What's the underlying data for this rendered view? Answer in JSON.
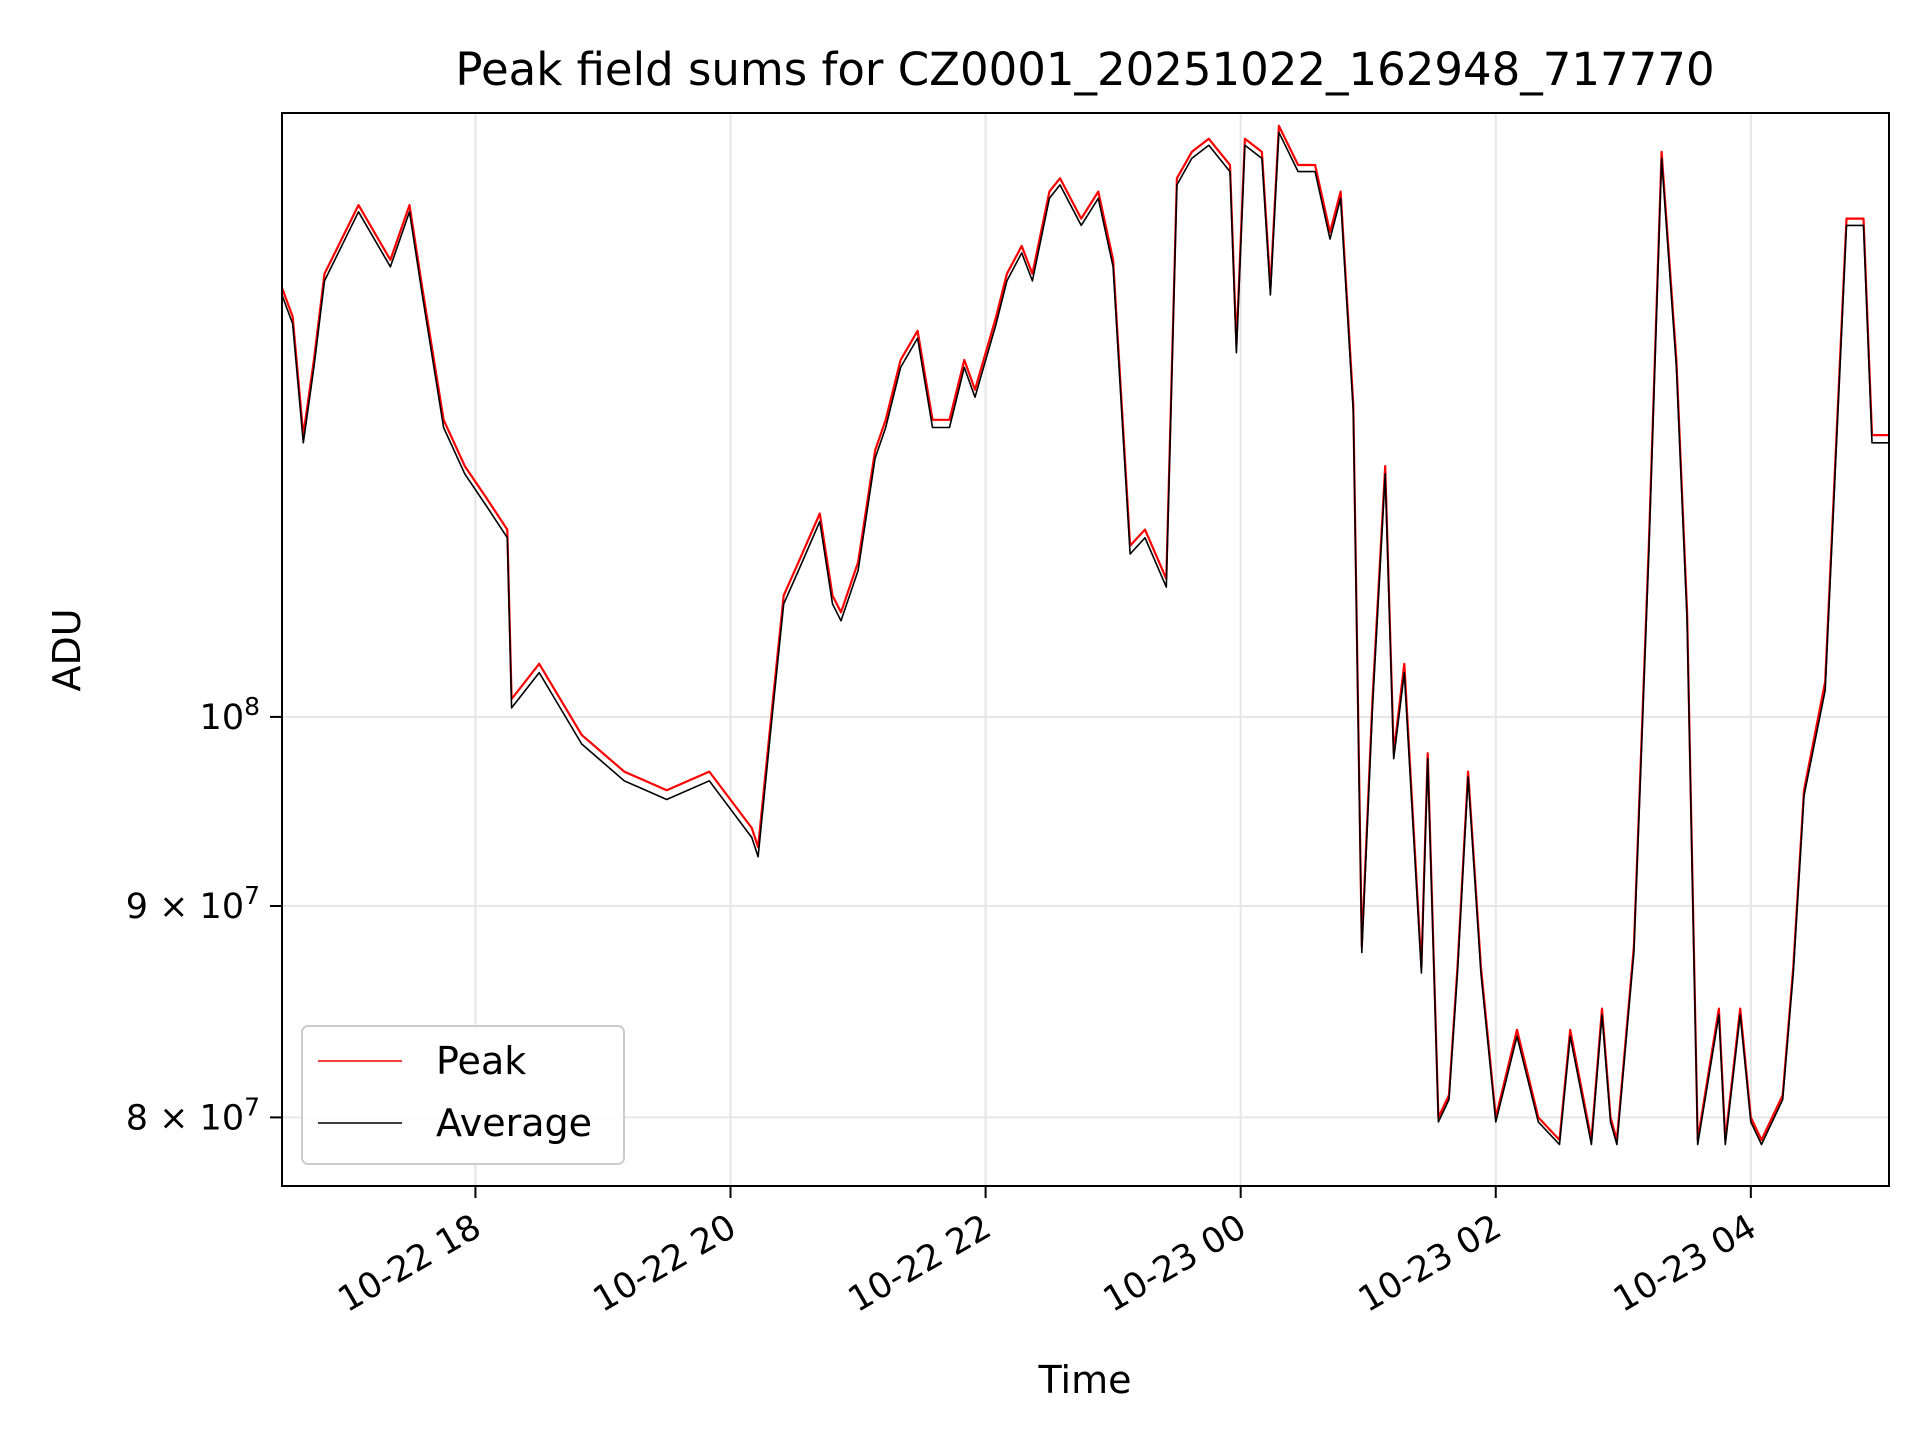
{
  "chart_data": {
    "type": "line",
    "title": "Peak field sums for CZ0001_20251022_162948_717770",
    "xlabel": "Time",
    "ylabel": "ADU",
    "y_scale": "log",
    "ylim": [
      77000000,
      140000000
    ],
    "xlim": [
      "2025-10-22 16:29",
      "2025-10-23 05:05"
    ],
    "grid": true,
    "legend_position": "lower-left",
    "x_ticks": [
      {
        "value": "2025-10-22 18:00",
        "label": "10-22 18"
      },
      {
        "value": "2025-10-22 20:00",
        "label": "10-22 20"
      },
      {
        "value": "2025-10-22 22:00",
        "label": "10-22 22"
      },
      {
        "value": "2025-10-23 00:00",
        "label": "10-23 00"
      },
      {
        "value": "2025-10-23 02:00",
        "label": "10-23 02"
      },
      {
        "value": "2025-10-23 04:00",
        "label": "10-23 04"
      }
    ],
    "y_ticks": [
      {
        "value": 100000000,
        "base": "10",
        "exp": "8"
      },
      {
        "value": 90000000,
        "mant": "9",
        "base": "10",
        "exp": "7"
      },
      {
        "value": 80000000,
        "mant": "8",
        "base": "10",
        "exp": "7"
      }
    ],
    "times": [
      "2025-10-22 16:29",
      "2025-10-22 16:34",
      "2025-10-22 16:39",
      "2025-10-22 16:44",
      "2025-10-22 16:49",
      "2025-10-22 17:05",
      "2025-10-22 17:20",
      "2025-10-22 17:29",
      "2025-10-22 17:35",
      "2025-10-22 17:45",
      "2025-10-22 17:55",
      "2025-10-22 18:05",
      "2025-10-22 18:15",
      "2025-10-22 18:17",
      "2025-10-22 18:30",
      "2025-10-22 18:50",
      "2025-10-22 19:10",
      "2025-10-22 19:30",
      "2025-10-22 19:50",
      "2025-10-22 20:10",
      "2025-10-22 20:13",
      "2025-10-22 20:20",
      "2025-10-22 20:25",
      "2025-10-22 20:32",
      "2025-10-22 20:42",
      "2025-10-22 20:48",
      "2025-10-22 20:52",
      "2025-10-22 21:00",
      "2025-10-22 21:08",
      "2025-10-22 21:13",
      "2025-10-22 21:20",
      "2025-10-22 21:28",
      "2025-10-22 21:35",
      "2025-10-22 21:43",
      "2025-10-22 21:50",
      "2025-10-22 21:55",
      "2025-10-22 22:05",
      "2025-10-22 22:10",
      "2025-10-22 22:17",
      "2025-10-22 22:22",
      "2025-10-22 22:30",
      "2025-10-22 22:35",
      "2025-10-22 22:45",
      "2025-10-22 22:53",
      "2025-10-22 23:00",
      "2025-10-22 23:08",
      "2025-10-22 23:15",
      "2025-10-22 23:25",
      "2025-10-22 23:30",
      "2025-10-22 23:37",
      "2025-10-22 23:45",
      "2025-10-22 23:55",
      "2025-10-22 23:58",
      "2025-10-23 00:02",
      "2025-10-23 00:10",
      "2025-10-23 00:14",
      "2025-10-23 00:18",
      "2025-10-23 00:27",
      "2025-10-23 00:35",
      "2025-10-23 00:42",
      "2025-10-23 00:47",
      "2025-10-23 00:53",
      "2025-10-23 00:57",
      "2025-10-23 01:02",
      "2025-10-23 01:08",
      "2025-10-23 01:12",
      "2025-10-23 01:17",
      "2025-10-23 01:25",
      "2025-10-23 01:28",
      "2025-10-23 01:33",
      "2025-10-23 01:38",
      "2025-10-23 01:42",
      "2025-10-23 01:47",
      "2025-10-23 01:53",
      "2025-10-23 02:00",
      "2025-10-23 02:10",
      "2025-10-23 02:20",
      "2025-10-23 02:30",
      "2025-10-23 02:35",
      "2025-10-23 02:45",
      "2025-10-23 02:50",
      "2025-10-23 02:54",
      "2025-10-23 02:57",
      "2025-10-23 03:05",
      "2025-10-23 03:12",
      "2025-10-23 03:18",
      "2025-10-23 03:25",
      "2025-10-23 03:30",
      "2025-10-23 03:35",
      "2025-10-23 03:45",
      "2025-10-23 03:48",
      "2025-10-23 03:55",
      "2025-10-23 04:00",
      "2025-10-23 04:05",
      "2025-10-23 04:15",
      "2025-10-23 04:20",
      "2025-10-23 04:25",
      "2025-10-23 04:35",
      "2025-10-23 04:45",
      "2025-10-23 04:53",
      "2025-10-23 04:57",
      "2025-10-23 05:05"
    ],
    "series": [
      {
        "name": "Peak",
        "color": "#ff0000",
        "values": [
          127000000,
          125000000,
          117000000,
          122000000,
          128000000,
          133000000,
          129000000,
          133000000,
          127000000,
          118000000,
          115000000,
          113000000,
          111000000,
          101000000,
          103000000,
          99000000,
          97000000,
          96000000,
          97000000,
          94000000,
          93000000,
          101000000,
          107000000,
          109000000,
          112000000,
          107000000,
          106000000,
          109000000,
          116000000,
          118000000,
          122000000,
          124000000,
          118000000,
          118000000,
          122000000,
          120000000,
          125000000,
          128000000,
          130000000,
          128000000,
          134000000,
          135000000,
          132000000,
          134000000,
          129000000,
          110000000,
          111000000,
          108000000,
          135000000,
          137000000,
          138000000,
          136000000,
          123000000,
          138000000,
          137000000,
          127000000,
          139000000,
          136000000,
          136000000,
          131000000,
          134000000,
          119000000,
          88000000,
          101000000,
          115000000,
          98000000,
          103000000,
          87000000,
          98000000,
          80000000,
          81000000,
          87000000,
          97000000,
          87000000,
          80000000,
          84000000,
          80000000,
          79000000,
          84000000,
          79000000,
          85000000,
          80000000,
          79000000,
          88000000,
          110000000,
          137000000,
          122000000,
          106000000,
          79000000,
          85000000,
          79000000,
          85000000,
          80000000,
          79000000,
          81000000,
          87000000,
          96000000,
          102000000,
          132000000,
          132000000,
          117000000,
          117000000
        ]
      },
      {
        "name": "Average",
        "color": "#000000",
        "values": [
          126500000,
          124500000,
          116500000,
          121500000,
          127500000,
          132500000,
          128500000,
          132500000,
          126500000,
          117500000,
          114500000,
          112500000,
          110500000,
          100500000,
          102500000,
          98500000,
          96500000,
          95500000,
          96500000,
          93500000,
          92500000,
          100500000,
          106500000,
          108500000,
          111500000,
          106500000,
          105500000,
          108500000,
          115500000,
          117500000,
          121500000,
          123500000,
          117500000,
          117500000,
          121500000,
          119500000,
          124500000,
          127500000,
          129500000,
          127500000,
          133500000,
          134500000,
          131500000,
          133500000,
          128500000,
          109500000,
          110500000,
          107500000,
          134500000,
          136500000,
          137500000,
          135500000,
          122500000,
          137500000,
          136500000,
          126500000,
          138500000,
          135500000,
          135500000,
          130500000,
          133500000,
          118500000,
          87700000,
          100500000,
          114500000,
          97700000,
          102500000,
          86700000,
          97700000,
          79800000,
          80800000,
          86700000,
          96700000,
          86700000,
          79800000,
          83700000,
          79800000,
          78800000,
          83700000,
          78800000,
          84700000,
          79800000,
          78800000,
          87700000,
          109500000,
          136500000,
          121500000,
          105500000,
          78800000,
          84700000,
          78800000,
          84700000,
          79800000,
          78800000,
          80800000,
          86700000,
          95700000,
          101500000,
          131500000,
          131500000,
          116500000,
          116500000
        ]
      }
    ]
  }
}
